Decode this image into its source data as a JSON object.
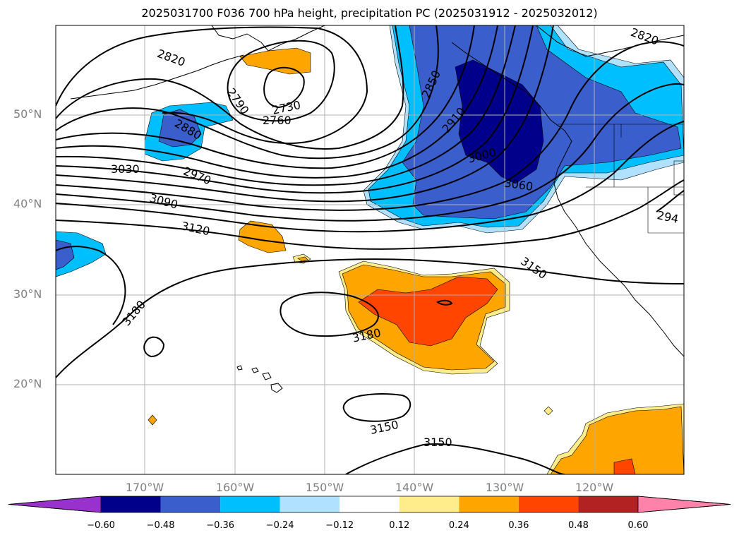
{
  "title": "2025031700 F036 700 hPa height, precipitation PC (2025031912 - 2025032012)",
  "lat_labels": [
    "50°N",
    "40°N",
    "30°N",
    "20°N"
  ],
  "lon_labels": [
    "170°W",
    "160°W",
    "150°W",
    "140°W",
    "130°W",
    "120°W"
  ],
  "contour_labels": [
    "2820",
    "2790",
    "2730",
    "2760",
    "2880",
    "2850",
    "2910",
    "3000",
    "3030",
    "2970",
    "3060",
    "3090",
    "3120",
    "3150",
    "3180",
    "3180",
    "3150",
    "3150",
    "2820",
    "294"
  ],
  "colorbar": {
    "ticks": [
      "−0.60",
      "−0.48",
      "−0.36",
      "−0.24",
      "−0.12",
      "0.12",
      "0.24",
      "0.36",
      "0.48",
      "0.60"
    ],
    "colors": [
      "#9932cc",
      "#00008b",
      "#3a5fcd",
      "#00bfff",
      "#b0e2ff",
      "#ffffff",
      "#ffec8b",
      "#ffa500",
      "#ff4500",
      "#b22222",
      "#ff82ab"
    ]
  }
}
